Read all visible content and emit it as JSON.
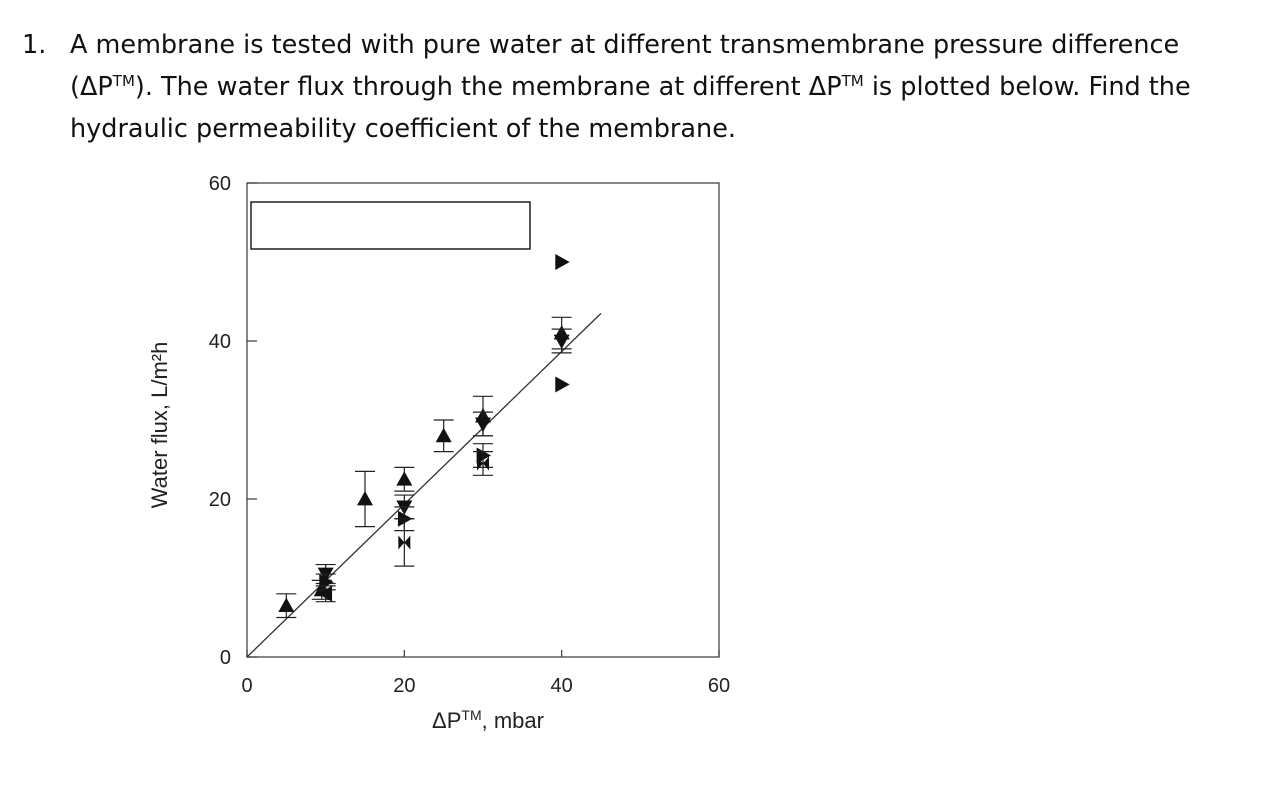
{
  "question": {
    "number": "1.",
    "text_part1": "A membrane is tested with pure water at different transmembrane pressure difference (ΔP",
    "sup1": "TM",
    "text_part2": "). The water flux through the membrane at different ΔP",
    "sup2": "TM",
    "text_part3": " is plotted below. Find the hydraulic permeability coefficient of the membrane."
  },
  "chart_data": {
    "type": "scatter",
    "title": "",
    "xlabel": "ΔP",
    "xlabel_sup": "TM",
    "xlabel_suffix": ", mbar",
    "ylabel": "Water flux, L/m²h",
    "xlim": [
      0,
      60
    ],
    "ylim": [
      0,
      60
    ],
    "xticks": [
      0,
      20,
      40,
      60
    ],
    "yticks": [
      0,
      20,
      40,
      60
    ],
    "xtick_labels": [
      "0",
      "20",
      "40",
      "60"
    ],
    "ytick_labels": [
      "0",
      "20",
      "40",
      "60"
    ],
    "grid": false,
    "legend": "top-left (blank box)",
    "fit_line": {
      "x": [
        0,
        45
      ],
      "y": [
        0,
        43.5
      ]
    },
    "points": [
      {
        "x": 5,
        "y": 6.5,
        "marker": "up",
        "err": 1.5
      },
      {
        "x": 9.5,
        "y": 8.5,
        "marker": "up",
        "err": 1.2
      },
      {
        "x": 10,
        "y": 10.5,
        "marker": "down",
        "err": 1.2
      },
      {
        "x": 10,
        "y": 9.5,
        "marker": "right",
        "err": 1
      },
      {
        "x": 10,
        "y": 8,
        "marker": "left",
        "err": 1
      },
      {
        "x": 15,
        "y": 20,
        "marker": "up",
        "err": 3.5
      },
      {
        "x": 20,
        "y": 22.5,
        "marker": "up",
        "err": 1.5
      },
      {
        "x": 20,
        "y": 19,
        "marker": "down",
        "err": 1.5
      },
      {
        "x": 20,
        "y": 17.5,
        "marker": "right",
        "err": 1.5
      },
      {
        "x": 20,
        "y": 14.5,
        "marker": "bowtie",
        "err": 3
      },
      {
        "x": 25,
        "y": 28,
        "marker": "up",
        "err": 2
      },
      {
        "x": 30,
        "y": 30.5,
        "marker": "up",
        "err": 2.5
      },
      {
        "x": 30,
        "y": 29.5,
        "marker": "down",
        "err": 1.5
      },
      {
        "x": 30,
        "y": 25.5,
        "marker": "right",
        "err": 1.5
      },
      {
        "x": 30,
        "y": 24.5,
        "marker": "bowtie",
        "err": 1.5
      },
      {
        "x": 40,
        "y": 41,
        "marker": "up",
        "err": 2
      },
      {
        "x": 40,
        "y": 40,
        "marker": "down",
        "err": 1.5
      },
      {
        "x": 40,
        "y": 50,
        "marker": "right",
        "err": 0
      },
      {
        "x": 40,
        "y": 34.5,
        "marker": "right",
        "err": 0
      }
    ]
  }
}
